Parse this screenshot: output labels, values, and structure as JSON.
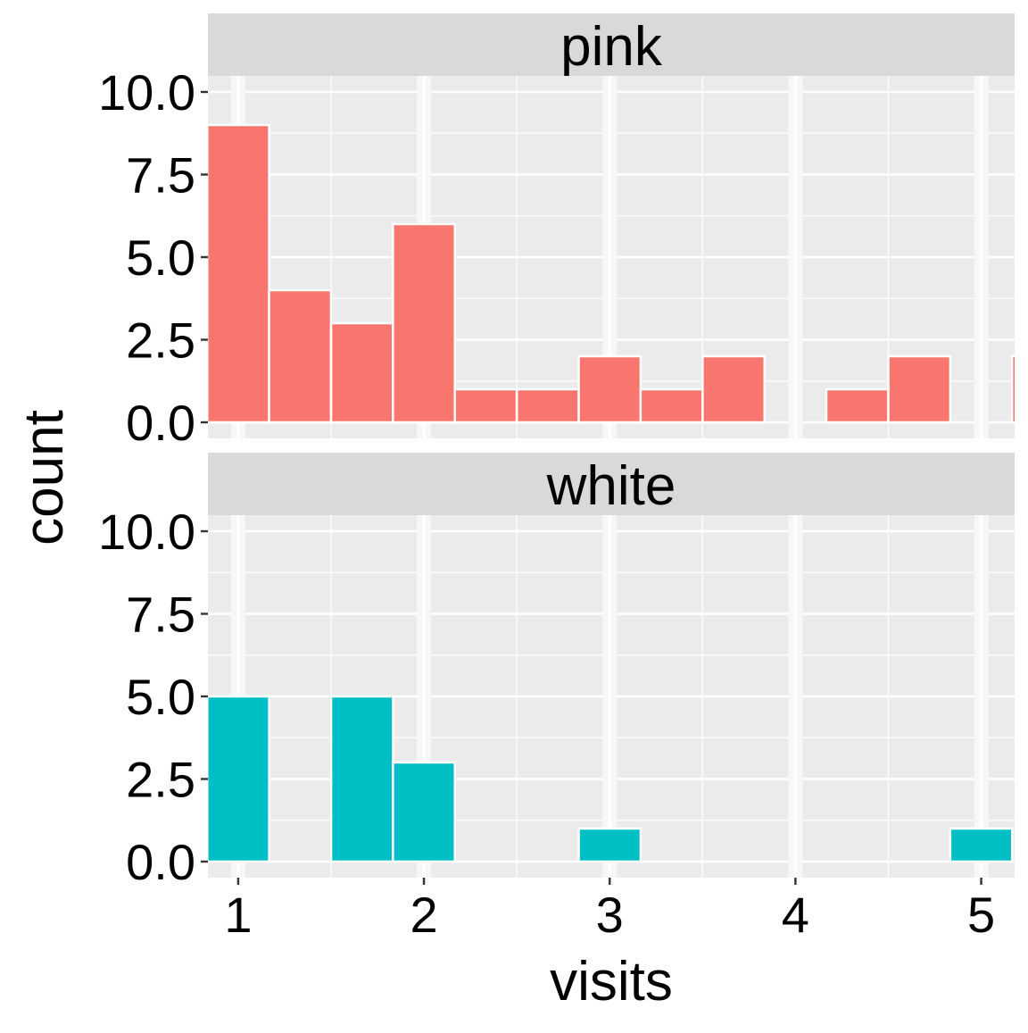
{
  "chart_data": {
    "type": "bar",
    "subtype": "faceted histogram",
    "xlabel": "visits",
    "ylabel": "count",
    "xlim": [
      0.837,
      5.18
    ],
    "ylim": [
      -0.49,
      10.5
    ],
    "x_ticks": [
      "1",
      "2",
      "3",
      "4",
      "5"
    ],
    "y_ticks": [
      "0.0",
      "2.5",
      "5.0",
      "7.5",
      "10.0"
    ],
    "bin_width": 0.3333,
    "grid": true,
    "legend": "none",
    "facets": [
      {
        "label": "pink",
        "color": "#F8766D",
        "bin_centers": [
          1,
          1.333,
          1.667,
          2,
          2.333,
          2.667,
          3,
          3.333,
          3.667,
          4,
          4.333,
          4.667,
          5,
          5.333
        ],
        "counts": [
          9,
          4,
          3,
          6,
          1,
          1,
          2,
          1,
          2,
          0,
          1,
          2,
          0,
          2
        ]
      },
      {
        "label": "white",
        "color": "#00BFC4",
        "bin_centers": [
          1,
          1.333,
          1.667,
          2,
          2.333,
          2.667,
          3,
          3.333,
          3.667,
          4,
          4.333,
          4.667,
          5,
          5.333
        ],
        "counts": [
          5,
          0,
          5,
          3,
          0,
          0,
          1,
          0,
          0,
          0,
          0,
          0,
          1,
          0
        ]
      }
    ]
  }
}
